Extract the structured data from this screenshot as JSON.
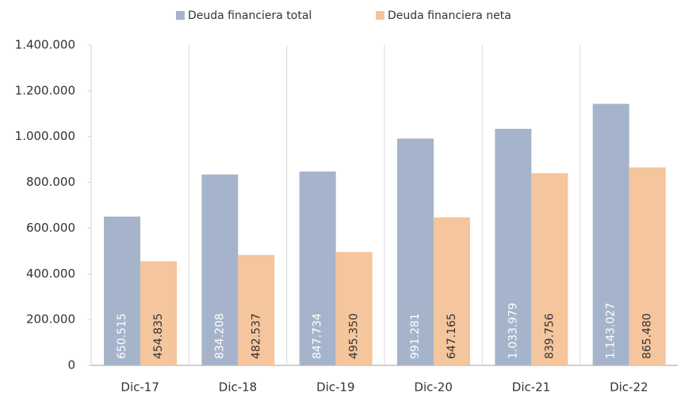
{
  "chart_data": {
    "type": "bar",
    "categories": [
      "Dic-17",
      "Dic-18",
      "Dic-19",
      "Dic-20",
      "Dic-21",
      "Dic-22"
    ],
    "series": [
      {
        "name": "Deuda financiera total",
        "color": "#a6b4cb",
        "values": [
          650515,
          834208,
          847734,
          991281,
          1033979,
          1143027
        ],
        "value_labels": [
          "650.515",
          "834.208",
          "847.734",
          "991.281",
          "1.033.979",
          "1.143.027"
        ]
      },
      {
        "name": "Deuda financiera neta",
        "color": "#f5c59d",
        "values": [
          454835,
          482537,
          495350,
          647165,
          839756,
          865480
        ],
        "value_labels": [
          "454.835",
          "482.537",
          "495.350",
          "647.165",
          "839.756",
          "865.480"
        ]
      }
    ],
    "ylim": [
      0,
      1400000
    ],
    "yticks": [
      0,
      {
        "value": 200000,
        "label": "200.000"
      },
      {
        "value": 400000,
        "label": "400.000"
      },
      {
        "value": 600000,
        "label": "600.000"
      },
      {
        "value": 800000,
        "label": "800.000"
      },
      {
        "value": 1000000,
        "label": "1.000.000"
      },
      {
        "value": 1200000,
        "label": "1.200.000"
      },
      {
        "value": 1400000,
        "label": "1.400.000"
      }
    ],
    "legend": "top"
  }
}
